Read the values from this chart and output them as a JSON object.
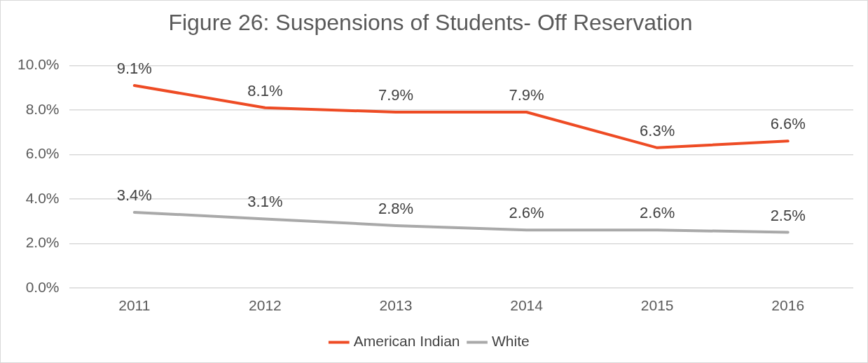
{
  "chart_data": {
    "type": "line",
    "title": "Figure 26: Suspensions of Students- Off Reservation",
    "categories": [
      "2011",
      "2012",
      "2013",
      "2014",
      "2015",
      "2016"
    ],
    "series": [
      {
        "name": "American Indian",
        "color": "#ee4b24",
        "values": [
          9.1,
          8.1,
          7.9,
          7.9,
          6.3,
          6.6
        ],
        "value_labels": [
          "9.1%",
          "8.1%",
          "7.9%",
          "7.9%",
          "6.3%",
          "6.6%"
        ]
      },
      {
        "name": "White",
        "color": "#a9a9a9",
        "values": [
          3.4,
          3.1,
          2.8,
          2.6,
          2.6,
          2.5
        ],
        "value_labels": [
          "3.4%",
          "3.1%",
          "2.8%",
          "2.6%",
          "2.6%",
          "2.5%"
        ]
      }
    ],
    "ylim": [
      0,
      10
    ],
    "yticks": [
      {
        "value": 0,
        "label": "0.0%"
      },
      {
        "value": 2,
        "label": "2.0%"
      },
      {
        "value": 4,
        "label": "4.0%"
      },
      {
        "value": 6,
        "label": "6.0%"
      },
      {
        "value": 8,
        "label": "8.0%"
      },
      {
        "value": 10,
        "label": "10.0%"
      }
    ],
    "grid": "y",
    "legend": "bottom",
    "marker": "none",
    "line_style": "solid"
  }
}
